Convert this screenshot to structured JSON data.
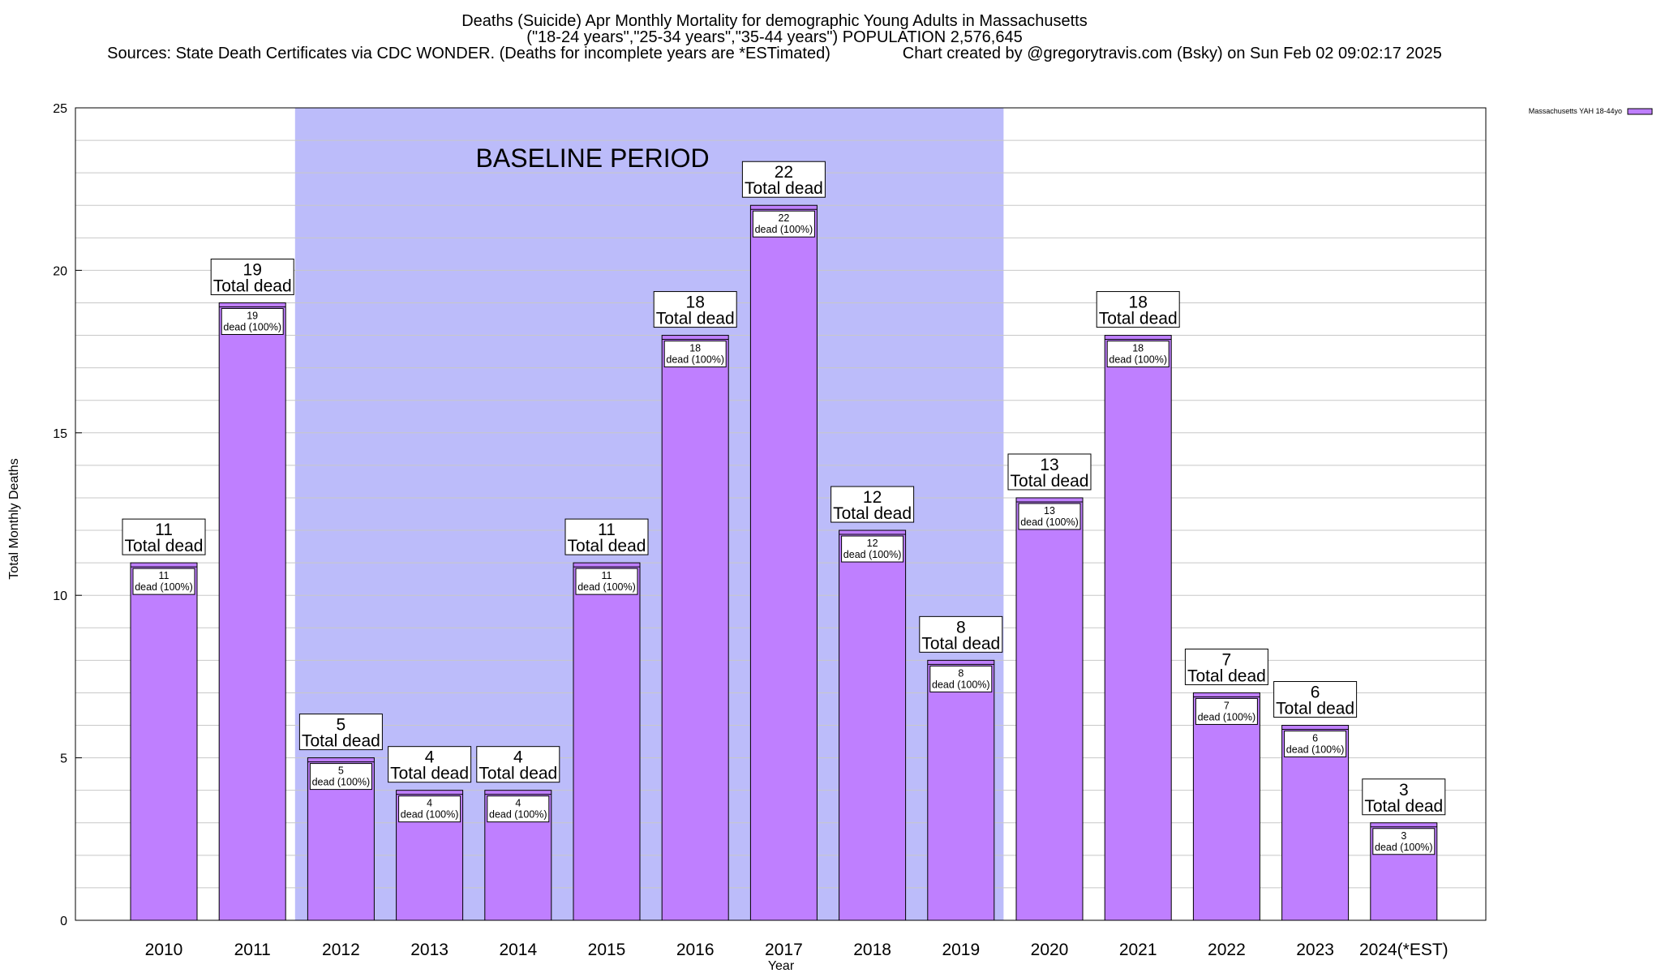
{
  "chart_data": {
    "type": "bar",
    "title_lines": [
      "Deaths (Suicide) Apr Monthly Mortality for demographic Young Adults in Massachusetts",
      "(\"18-24 years\",\"25-34 years\",\"35-44 years\") POPULATION 2,576,645",
      "Sources: State Death Certificates via CDC WONDER. (Deaths for incomplete years are *ESTimated)                Chart created by @gregorytravis.com (Bsky) on Sun Feb 02 09:02:17 2025"
    ],
    "xlabel": "Year",
    "ylabel": "Total Monthly Deaths",
    "ylim": [
      0,
      25
    ],
    "y_ticks": [
      0,
      5,
      10,
      15,
      20,
      25
    ],
    "grid": true,
    "categories": [
      "2010",
      "2011",
      "2012",
      "2013",
      "2014",
      "2015",
      "2016",
      "2017",
      "2018",
      "2019",
      "2020",
      "2021",
      "2022",
      "2023",
      "2024(*EST)"
    ],
    "series": [
      {
        "name": "Massachusetts YAH 18-44yo",
        "values": [
          11,
          19,
          5,
          4,
          4,
          11,
          18,
          22,
          12,
          8,
          13,
          18,
          7,
          6,
          3
        ]
      }
    ],
    "top_box_caption": "Total dead",
    "inner_box_caption": "dead (100%)",
    "baseline_period": {
      "label": "BASELINE PERIOD",
      "start": "2012",
      "end": "2019"
    },
    "legend_position": "top-right",
    "colors": {
      "bar": "#bf7fff",
      "baseline": "#bcbcfa",
      "grid": "#c8c8c8",
      "legend_swatch": "#bf7fff"
    }
  }
}
